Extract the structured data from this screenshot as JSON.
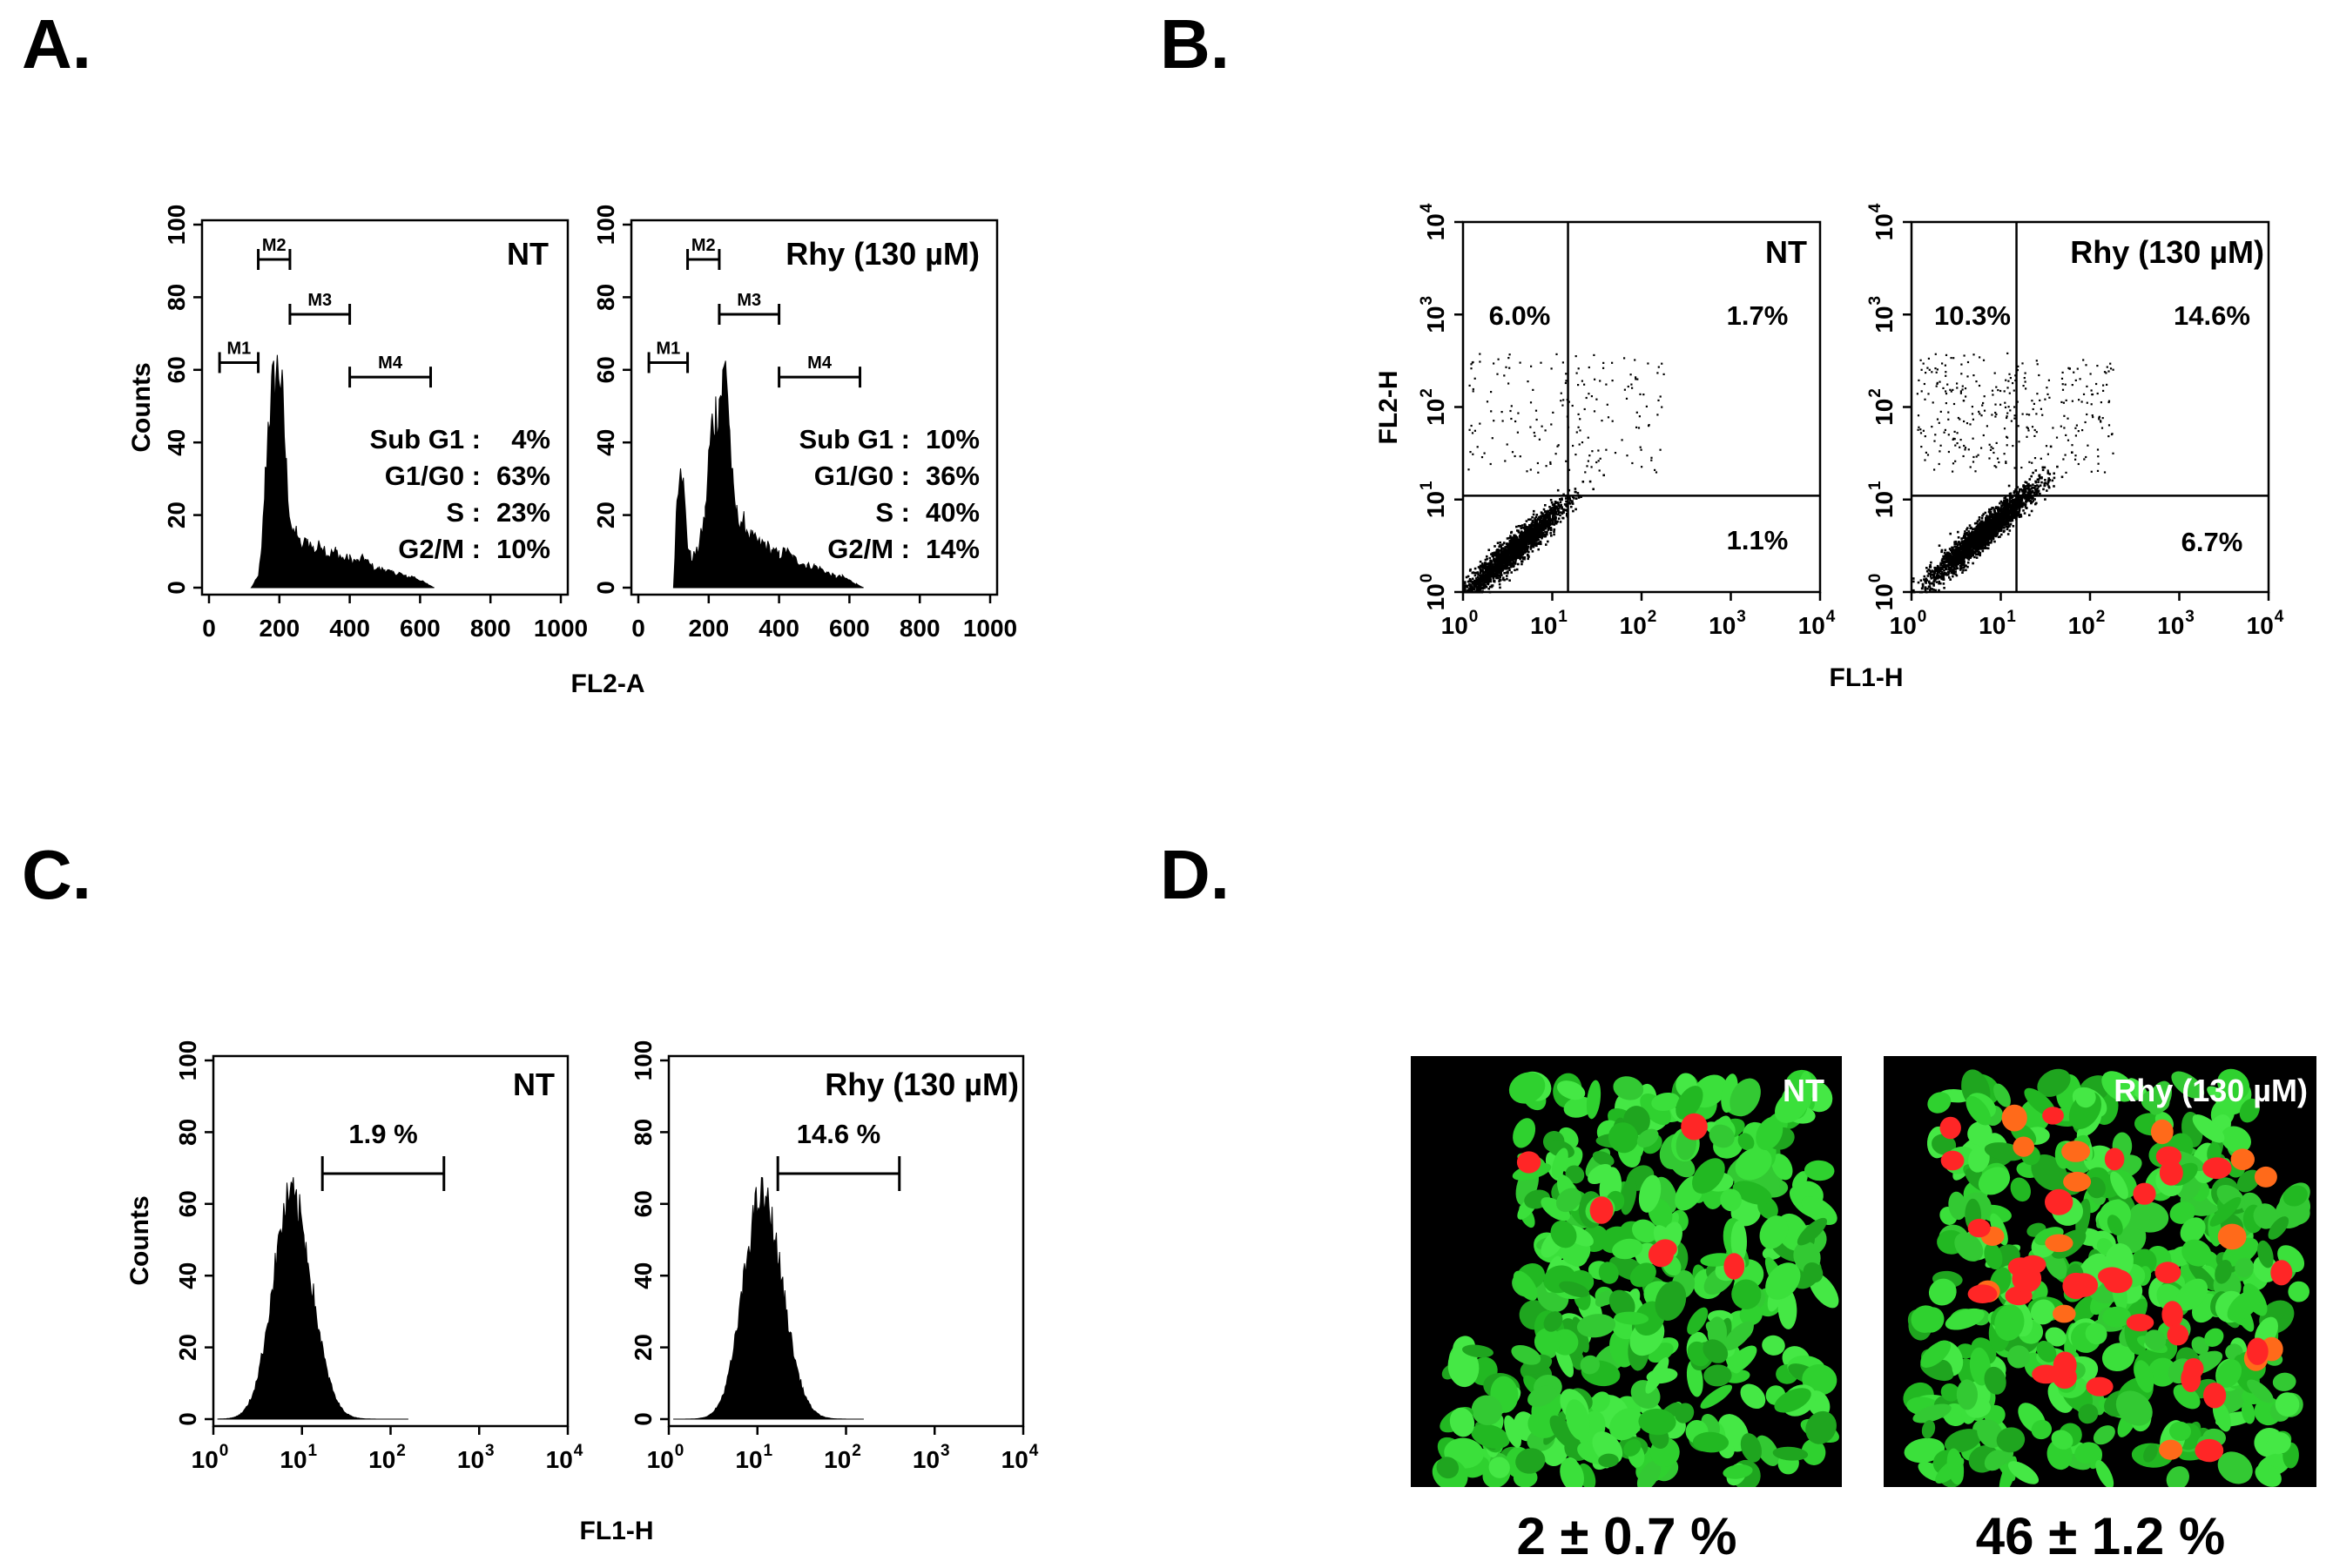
{
  "panels": {
    "A": "A.",
    "B": "B.",
    "C": "C.",
    "D": "D."
  },
  "chart_data": [
    {
      "panel": "A",
      "type": "bar",
      "plot_title": "NT",
      "xlabel": "FL2-A",
      "ylabel": "Counts",
      "xlim": [
        0,
        1000
      ],
      "ylim": [
        0,
        100
      ],
      "xticks": [
        "0",
        "200",
        "400",
        "600",
        "800",
        "1000"
      ],
      "yticks": [
        "0",
        "20",
        "40",
        "60",
        "80",
        "100"
      ],
      "markers": [
        {
          "name": "M1",
          "range": [
            30,
            140
          ]
        },
        {
          "name": "M2",
          "range": [
            140,
            230
          ]
        },
        {
          "name": "M3",
          "range": [
            230,
            400
          ]
        },
        {
          "name": "M4",
          "range": [
            400,
            630
          ]
        }
      ],
      "stats": [
        {
          "phase": "Sub G1 :",
          "value": "4%"
        },
        {
          "phase": "G1/G0 :",
          "value": "63%"
        },
        {
          "phase": "S :",
          "value": "23%"
        },
        {
          "phase": "G2/M :",
          "value": "10%"
        }
      ],
      "histogram": {
        "x": [
          120,
          140,
          150,
          160,
          170,
          180,
          190,
          200,
          210,
          220,
          230,
          240,
          250,
          260,
          280,
          300,
          320,
          340,
          360,
          380,
          400,
          420,
          440,
          460,
          480,
          500,
          520,
          540,
          560,
          580,
          600,
          620,
          640
        ],
        "y": [
          0,
          3,
          10,
          30,
          48,
          54,
          58,
          61,
          50,
          32,
          20,
          14,
          16,
          11,
          13,
          10,
          12,
          9,
          10,
          8,
          8,
          7,
          8,
          6,
          5,
          5,
          4,
          4,
          3,
          3,
          2,
          1,
          0
        ]
      }
    },
    {
      "panel": "A",
      "type": "bar",
      "plot_title": "Rhy (130 µM)",
      "xlabel": "",
      "ylabel": "",
      "xlim": [
        0,
        1000
      ],
      "ylim": [
        0,
        100
      ],
      "xticks": [
        "0",
        "200",
        "400",
        "600",
        "800",
        "1000"
      ],
      "yticks": [
        "0",
        "20",
        "40",
        "60",
        "80",
        "100"
      ],
      "markers": [
        {
          "name": "M1",
          "range": [
            30,
            140
          ]
        },
        {
          "name": "M2",
          "range": [
            140,
            230
          ]
        },
        {
          "name": "M3",
          "range": [
            230,
            400
          ]
        },
        {
          "name": "M4",
          "range": [
            400,
            630
          ]
        }
      ],
      "stats": [
        {
          "phase": "Sub G1 :",
          "value": "10%"
        },
        {
          "phase": "G1/G0 :",
          "value": "36%"
        },
        {
          "phase": "S :",
          "value": "40%"
        },
        {
          "phase": "G2/M :",
          "value": "14%"
        }
      ],
      "histogram": {
        "x": [
          100,
          110,
          120,
          130,
          140,
          150,
          170,
          190,
          200,
          210,
          220,
          230,
          240,
          250,
          260,
          270,
          280,
          300,
          320,
          340,
          360,
          380,
          400,
          420,
          440,
          460,
          480,
          500,
          520,
          540,
          560,
          580,
          600,
          620,
          640
        ],
        "y": [
          0,
          25,
          38,
          25,
          12,
          8,
          10,
          20,
          35,
          45,
          48,
          52,
          56,
          62,
          42,
          25,
          20,
          18,
          14,
          12,
          12,
          10,
          9,
          10,
          8,
          7,
          6,
          6,
          5,
          4,
          3,
          3,
          2,
          1,
          0
        ]
      }
    },
    {
      "panel": "B",
      "type": "scatter",
      "plot_title": "NT",
      "xlabel": "FL1-H",
      "ylabel": "FL2-H",
      "xscale": "log",
      "yscale": "log",
      "xlim": [
        1,
        10000
      ],
      "ylim": [
        1,
        10000
      ],
      "quadrants": {
        "upper_left": "6.0%",
        "upper_right": "1.7%",
        "lower_right": "1.1%"
      },
      "gate": {
        "x": 15,
        "y": 11
      },
      "population": {
        "center_x_log": 0.55,
        "center_y_log": 0.45,
        "n_points": 2200
      }
    },
    {
      "panel": "B",
      "type": "scatter",
      "plot_title": "Rhy (130 µM)",
      "xlabel": "",
      "ylabel": "",
      "xscale": "log",
      "yscale": "log",
      "xlim": [
        1,
        10000
      ],
      "ylim": [
        1,
        10000
      ],
      "quadrants": {
        "upper_left": "10.3%",
        "upper_right": "14.6%",
        "lower_right": "6.7%"
      },
      "gate": {
        "x": 15,
        "y": 11
      },
      "population": {
        "center_x_log": 0.8,
        "center_y_log": 0.65,
        "n_points": 2600
      }
    },
    {
      "panel": "C",
      "type": "area",
      "plot_title": "NT",
      "xlabel": "FL1-H",
      "ylabel": "Counts",
      "xscale": "log",
      "xlim": [
        1,
        10000
      ],
      "ylim": [
        0,
        100
      ],
      "yticks": [
        "0",
        "20",
        "40",
        "60",
        "80",
        "100"
      ],
      "gate_label": "1.9 %",
      "gate_range": [
        17,
        400
      ],
      "peak": {
        "x_log": 0.88,
        "height": 62,
        "width_log": 0.22
      }
    },
    {
      "panel": "C",
      "type": "area",
      "plot_title": "Rhy (130 µM)",
      "xlabel": "",
      "ylabel": "",
      "xscale": "log",
      "xlim": [
        1,
        10000
      ],
      "ylim": [
        0,
        100
      ],
      "yticks": [
        "0",
        "20",
        "40",
        "60",
        "80",
        "100"
      ],
      "gate_label": "14.6 %",
      "gate_range": [
        17,
        400
      ],
      "peak": {
        "x_log": 1.05,
        "height": 62,
        "width_log": 0.22
      }
    }
  ],
  "microscopy": [
    {
      "label": "NT",
      "value": "2 ± 0.7 %"
    },
    {
      "label": "Rhy (130 µM)",
      "value": "46 ± 1.2 %"
    }
  ],
  "colors": {
    "cells": "#2fd12f",
    "nuclei": "#ff2626",
    "background": "#000000"
  }
}
